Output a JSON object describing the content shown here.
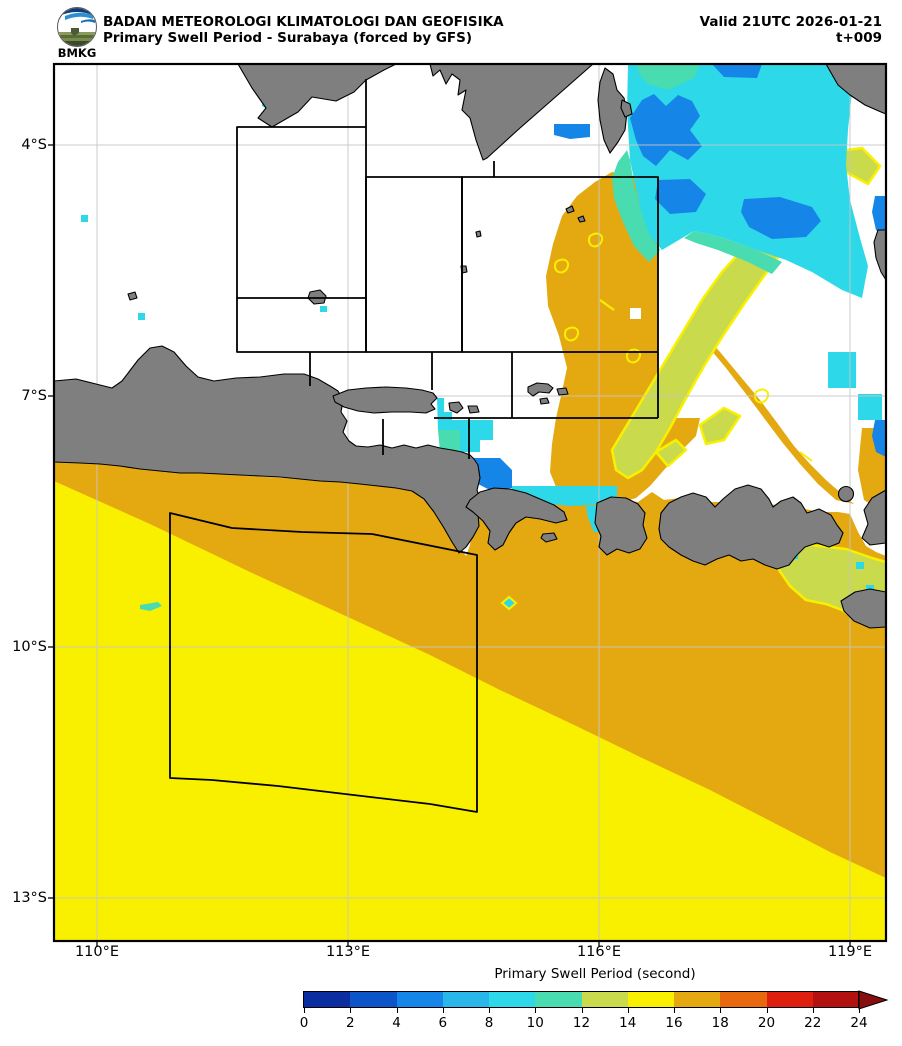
{
  "header": {
    "logo": "BMKG",
    "agency": "BADAN METEOROLOGI KLIMATOLOGI DAN GEOFISIKA",
    "product": "Primary Swell Period - Surabaya (forced by GFS)",
    "valid": "Valid 21UTC 2026-01-21",
    "timestep": "t+009"
  },
  "map": {
    "x_tick_labels": [
      "110°E",
      "113°E",
      "116°E",
      "119°E"
    ],
    "y_tick_labels": [
      "4°S",
      "7°S",
      "10°S",
      "13°S"
    ]
  },
  "colorbar": {
    "label": "Primary Swell Period (second)",
    "tick_labels": [
      "0",
      "2",
      "4",
      "6",
      "8",
      "10",
      "12",
      "14",
      "16",
      "18",
      "20",
      "22",
      "24"
    ],
    "segment_colors": [
      "#0a2da0",
      "#0c55c8",
      "#1585e8",
      "#28b7e8",
      "#2dd9e8",
      "#48dcb0",
      "#c9da4d",
      "#f9f000",
      "#e4a911",
      "#e8680d",
      "#de1f0e",
      "#b31110"
    ],
    "arrow_color": "#870e10"
  },
  "palette": {
    "sea_nodata": "#ffffff",
    "blue_4_6": "#1585e8",
    "sky_6_8": "#28b7e8",
    "cyan_8_10": "#2dd9e8",
    "turquoise_10_12": "#48dcb0",
    "green_12_14": "#c9da4d",
    "yellow_14_16": "#f9f000",
    "orange_16_18": "#e4a911",
    "land": "#7f7f7f",
    "grid": "#c6c6c6",
    "boundary": "#000000"
  },
  "chart_data": {
    "type": "heatmap",
    "title": "Primary Swell Period - Surabaya (forced by GFS)",
    "units": "second",
    "lon_range_deg_east": [
      109.5,
      119.4
    ],
    "lat_range_deg_south": [
      3.0,
      13.5
    ],
    "scale_ticks": [
      0,
      2,
      4,
      6,
      8,
      10,
      12,
      14,
      16,
      18,
      20,
      22,
      24
    ],
    "scale_colors": [
      "#0a2da0",
      "#0c55c8",
      "#1585e8",
      "#28b7e8",
      "#2dd9e8",
      "#48dcb0",
      "#c9da4d",
      "#f9f000",
      "#e4a911",
      "#e8680d",
      "#de1f0e",
      "#b31110"
    ],
    "regions_summary": [
      {
        "area": "Indian Ocean southwest of Java",
        "period_s": "14-16"
      },
      {
        "area": "Coastal band south of Java, Bali, Lombok, Sumbawa",
        "period_s": "16-18"
      },
      {
        "area": "Makassar Strait / northeast corner",
        "period_s": "8-10 with 4-6 patches"
      },
      {
        "area": "Diagonal bands east of Kangean toward Makassar Strait",
        "period_s": "alternating 12-14 and 16-18"
      },
      {
        "area": "Bali Strait and Madura Strait mouth",
        "period_s": "4-10"
      },
      {
        "area": "North of Sumba",
        "period_s": "12-14"
      },
      {
        "area": "Java Sea (most of forecast rectangles)",
        "period_s": "no data (white)"
      }
    ]
  }
}
